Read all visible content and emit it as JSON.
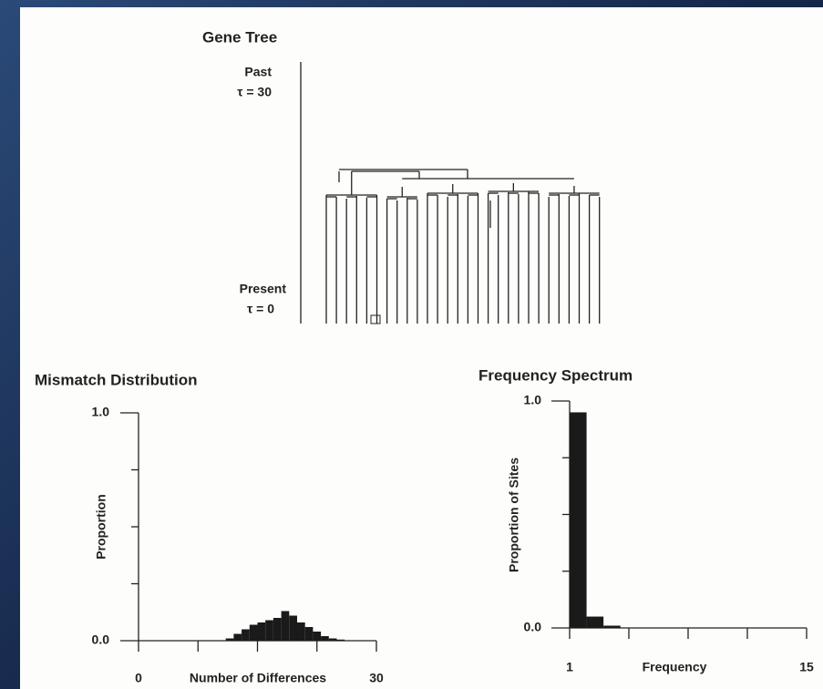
{
  "gene_tree": {
    "title": "Gene Tree",
    "past": "Past",
    "past_tau": "τ = 30",
    "present": "Present",
    "present_tau": "τ = 0"
  },
  "chart_data": [
    {
      "type": "histogram",
      "title": "Mismatch Distribution",
      "ylabel": "Proportion",
      "xlabel": "Number of Differences",
      "bins": [
        11,
        12,
        13,
        14,
        15,
        16,
        17,
        18,
        19,
        20,
        21,
        22,
        23,
        24,
        25,
        26
      ],
      "values": [
        0.01,
        0.03,
        0.05,
        0.07,
        0.08,
        0.09,
        0.1,
        0.13,
        0.11,
        0.08,
        0.06,
        0.04,
        0.02,
        0.01,
        0.005
      ],
      "color": "#1a1a1a",
      "xlim": [
        0,
        30
      ],
      "ylim": [
        0,
        1
      ],
      "xticks": [
        0,
        30
      ],
      "minor_xticks": [
        7.5,
        15,
        22.5
      ],
      "yticks": [
        {
          "value": 0,
          "label": "0.0"
        },
        {
          "value": 1,
          "label": "1.0"
        }
      ],
      "minor_yticks": [
        0.25,
        0.5,
        0.75
      ]
    },
    {
      "type": "histogram",
      "title": "Frequency Spectrum",
      "ylabel": "Proportion of Sites",
      "xlabel": "Frequency",
      "bins": [
        1,
        2,
        3,
        4
      ],
      "values": [
        0.95,
        0.05,
        0.01
      ],
      "color": "#1a1a1a",
      "xlim": [
        1,
        15
      ],
      "ylim": [
        0,
        1
      ],
      "xticks": [
        1,
        15
      ],
      "minor_xticks": [
        4.5,
        8,
        11.5
      ],
      "yticks": [
        {
          "value": 0,
          "label": "0.0"
        },
        {
          "value": 1,
          "label": "1.0"
        }
      ],
      "minor_yticks": [
        0.25,
        0.5,
        0.75
      ]
    }
  ]
}
